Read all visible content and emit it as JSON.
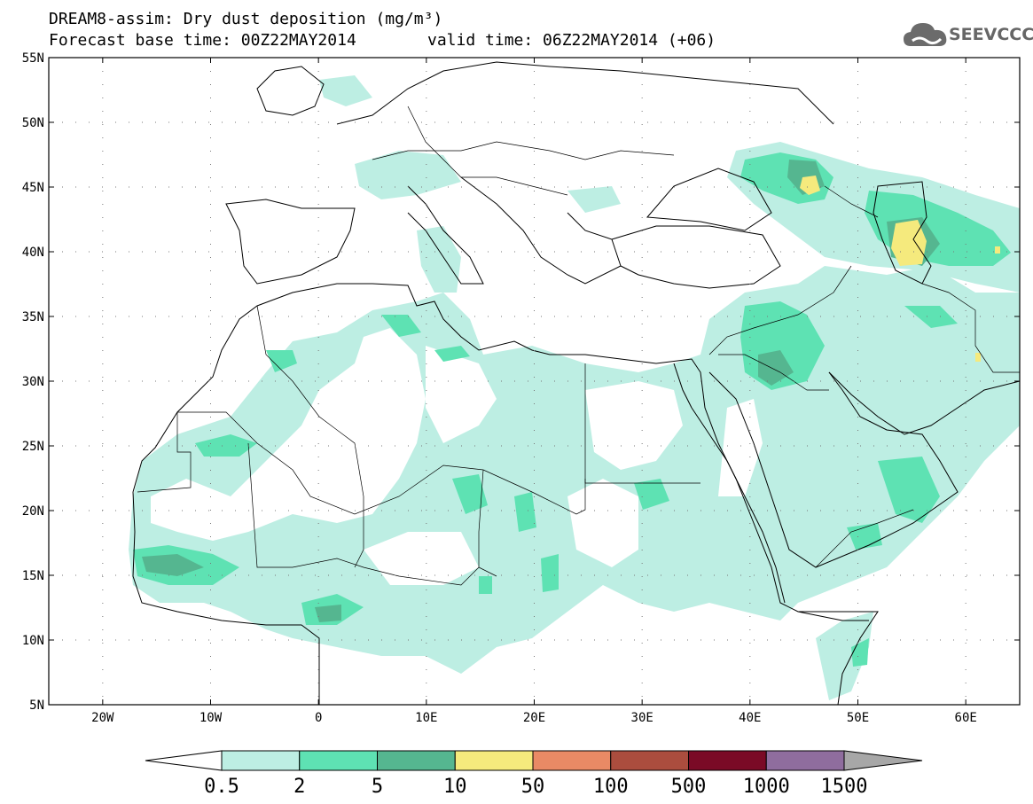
{
  "title": {
    "line1": "DREAM8-assim: Dry dust deposition (mg/m³)",
    "line2_base": "Forecast base time: 00Z22MAY2014",
    "line2_valid": "valid time: 06Z22MAY2014 (+06)"
  },
  "logo": {
    "text": "SEEVCCC",
    "icon": "cloud-icon"
  },
  "map": {
    "lon_range": [
      -25,
      65
    ],
    "lat_range": [
      5,
      55
    ],
    "lon_ticks": [
      {
        "value": -20,
        "label": "20W"
      },
      {
        "value": -10,
        "label": "10W"
      },
      {
        "value": 0,
        "label": "0"
      },
      {
        "value": 10,
        "label": "10E"
      },
      {
        "value": 20,
        "label": "20E"
      },
      {
        "value": 30,
        "label": "30E"
      },
      {
        "value": 40,
        "label": "40E"
      },
      {
        "value": 50,
        "label": "50E"
      },
      {
        "value": 60,
        "label": "60E"
      }
    ],
    "lat_ticks": [
      {
        "value": 5,
        "label": "5N"
      },
      {
        "value": 10,
        "label": "10N"
      },
      {
        "value": 15,
        "label": "15N"
      },
      {
        "value": 20,
        "label": "20N"
      },
      {
        "value": 25,
        "label": "25N"
      },
      {
        "value": 30,
        "label": "30N"
      },
      {
        "value": 35,
        "label": "35N"
      },
      {
        "value": 40,
        "label": "40N"
      },
      {
        "value": 45,
        "label": "45N"
      },
      {
        "value": 50,
        "label": "50N"
      },
      {
        "value": 55,
        "label": "55N"
      }
    ],
    "grid": "dotted"
  },
  "colorbar": {
    "levels": [
      "0.5",
      "2",
      "5",
      "10",
      "50",
      "100",
      "500",
      "1000",
      "1500"
    ],
    "colors": [
      "#ffffff",
      "#bdeee3",
      "#5ee2b3",
      "#55b690",
      "#f5ea7d",
      "#e98a65",
      "#ab4d3e",
      "#7a0a26",
      "#8f6d9e",
      "#a7a7a7"
    ]
  }
}
